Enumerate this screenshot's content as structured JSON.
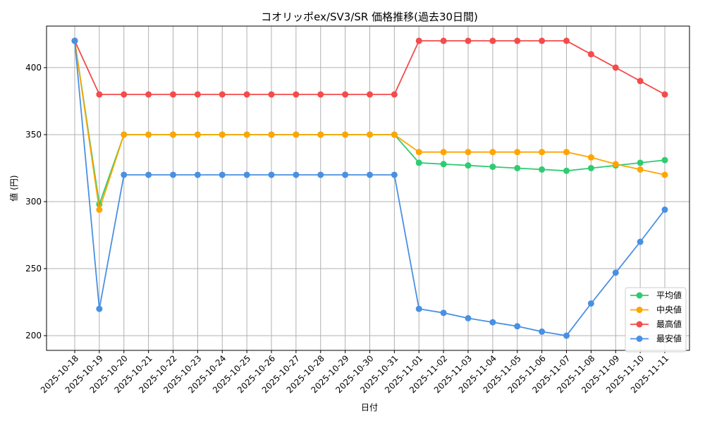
{
  "chart_data": {
    "type": "line",
    "title": "コオリッポex/SV3/SR 価格推移(過去30日間)",
    "xlabel": "日付",
    "ylabel": "値 (円)",
    "ylim": [
      189,
      431
    ],
    "yticks": [
      200,
      250,
      300,
      350,
      400
    ],
    "grid": true,
    "legend_position": "bottom-right",
    "categories": [
      "2025-10-18",
      "2025-10-19",
      "2025-10-20",
      "2025-10-21",
      "2025-10-22",
      "2025-10-23",
      "2025-10-24",
      "2025-10-25",
      "2025-10-26",
      "2025-10-27",
      "2025-10-28",
      "2025-10-29",
      "2025-10-30",
      "2025-10-31",
      "2025-11-01",
      "2025-11-02",
      "2025-11-03",
      "2025-11-04",
      "2025-11-05",
      "2025-11-06",
      "2025-11-07",
      "2025-11-08",
      "2025-11-09",
      "2025-11-10",
      "2025-11-11"
    ],
    "series": [
      {
        "name": "平均値",
        "color": "#2ecc71",
        "values": [
          420,
          298,
          350,
          350,
          350,
          350,
          350,
          350,
          350,
          350,
          350,
          350,
          350,
          350,
          329,
          328,
          327,
          326,
          325,
          324,
          323,
          325,
          327,
          329,
          331
        ]
      },
      {
        "name": "中央値",
        "color": "#ffa500",
        "values": [
          420,
          294,
          350,
          350,
          350,
          350,
          350,
          350,
          350,
          350,
          350,
          350,
          350,
          350,
          337,
          337,
          337,
          337,
          337,
          337,
          337,
          333,
          328,
          324,
          320
        ]
      },
      {
        "name": "最高値",
        "color": "#f44b4b",
        "values": [
          420,
          380,
          380,
          380,
          380,
          380,
          380,
          380,
          380,
          380,
          380,
          380,
          380,
          380,
          420,
          420,
          420,
          420,
          420,
          420,
          420,
          410,
          400,
          390,
          380
        ]
      },
      {
        "name": "最安値",
        "color": "#4a90e2",
        "values": [
          420,
          220,
          320,
          320,
          320,
          320,
          320,
          320,
          320,
          320,
          320,
          320,
          320,
          320,
          220,
          217,
          213,
          210,
          207,
          203,
          200,
          224,
          247,
          270,
          294
        ]
      }
    ]
  }
}
